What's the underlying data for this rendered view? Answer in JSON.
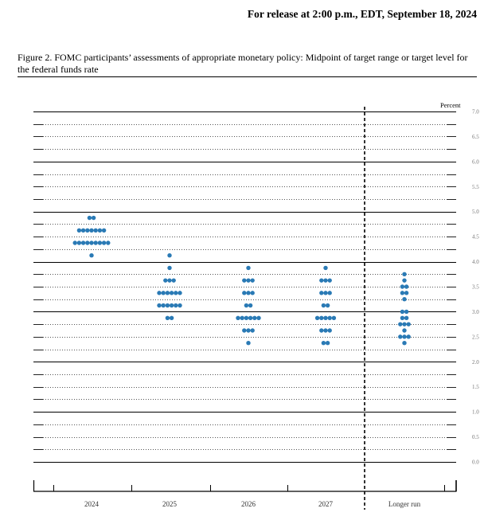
{
  "header": {
    "release": "For release at 2:00 p.m., EDT, September 18, 2024"
  },
  "figure": {
    "caption": "Figure 2.  FOMC participants’ assessments of appropriate monetary policy:  Midpoint of target range or target level for the federal funds rate"
  },
  "chart_data": {
    "type": "scatter",
    "title": "FOMC participants’ assessments of appropriate monetary policy: Midpoint of target range or target level for the federal funds rate",
    "xlabel": "",
    "ylabel": "Percent",
    "ylim": [
      0.0,
      7.0
    ],
    "yticks": [
      "0.0",
      "0.5",
      "1.0",
      "1.5",
      "2.0",
      "2.5",
      "3.0",
      "3.5",
      "4.0",
      "4.5",
      "5.0",
      "5.5",
      "6.0",
      "6.5",
      "7.0"
    ],
    "categories": [
      "2024",
      "2025",
      "2026",
      "2027",
      "Longer run"
    ],
    "dot_color": "#2a7ab5",
    "series": [
      {
        "name": "2024",
        "points": [
          {
            "rate": 4.875,
            "count": 2
          },
          {
            "rate": 4.625,
            "count": 7
          },
          {
            "rate": 4.375,
            "count": 9
          },
          {
            "rate": 4.125,
            "count": 1
          }
        ]
      },
      {
        "name": "2025",
        "points": [
          {
            "rate": 4.125,
            "count": 1
          },
          {
            "rate": 3.875,
            "count": 1
          },
          {
            "rate": 3.625,
            "count": 3
          },
          {
            "rate": 3.375,
            "count": 6
          },
          {
            "rate": 3.125,
            "count": 6
          },
          {
            "rate": 2.875,
            "count": 2
          }
        ]
      },
      {
        "name": "2026",
        "points": [
          {
            "rate": 3.875,
            "count": 1
          },
          {
            "rate": 3.625,
            "count": 3
          },
          {
            "rate": 3.375,
            "count": 3
          },
          {
            "rate": 3.125,
            "count": 2
          },
          {
            "rate": 2.875,
            "count": 6
          },
          {
            "rate": 2.625,
            "count": 3
          },
          {
            "rate": 2.375,
            "count": 1
          }
        ]
      },
      {
        "name": "2027",
        "points": [
          {
            "rate": 3.875,
            "count": 1
          },
          {
            "rate": 3.625,
            "count": 3
          },
          {
            "rate": 3.375,
            "count": 3
          },
          {
            "rate": 3.125,
            "count": 2
          },
          {
            "rate": 2.875,
            "count": 5
          },
          {
            "rate": 2.625,
            "count": 3
          },
          {
            "rate": 2.375,
            "count": 2
          }
        ]
      },
      {
        "name": "Longer run",
        "points": [
          {
            "rate": 3.75,
            "count": 1
          },
          {
            "rate": 3.625,
            "count": 1
          },
          {
            "rate": 3.5,
            "count": 2
          },
          {
            "rate": 3.375,
            "count": 2
          },
          {
            "rate": 3.25,
            "count": 1
          },
          {
            "rate": 3.0,
            "count": 2
          },
          {
            "rate": 2.875,
            "count": 2
          },
          {
            "rate": 2.75,
            "count": 3
          },
          {
            "rate": 2.625,
            "count": 1
          },
          {
            "rate": 2.5,
            "count": 3
          },
          {
            "rate": 2.375,
            "count": 1
          }
        ]
      }
    ],
    "separator": "dashed vertical line between 2027 and Longer run",
    "grid": "solid lines at whole percents, dotted lines at 0.25 steps"
  }
}
